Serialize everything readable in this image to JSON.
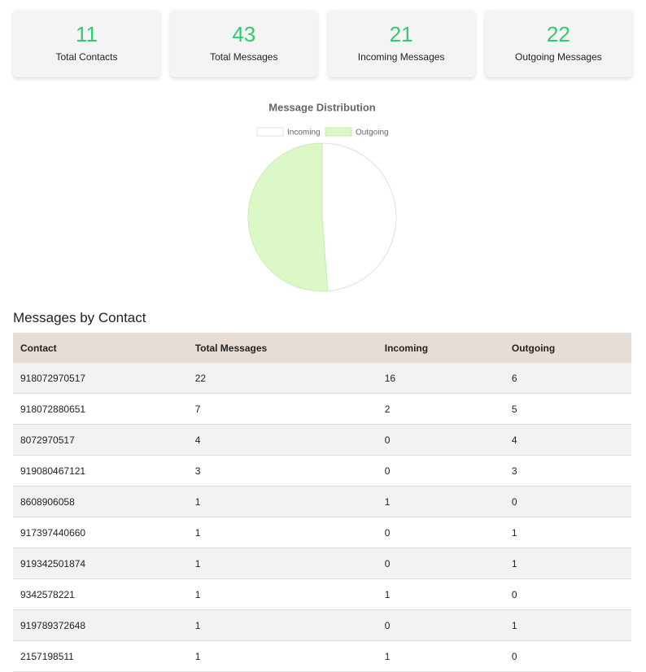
{
  "stats": [
    {
      "value": 11,
      "label": "Total Contacts"
    },
    {
      "value": 43,
      "label": "Total Messages"
    },
    {
      "value": 21,
      "label": "Incoming Messages"
    },
    {
      "value": 22,
      "label": "Outgoing Messages"
    }
  ],
  "chart_data": {
    "type": "pie",
    "title": "Message Distribution",
    "categories": [
      "Incoming",
      "Outgoing"
    ],
    "values": [
      21,
      22
    ],
    "colors": [
      "#ffffff",
      "#dcf8c6"
    ],
    "border_colors": [
      "#e0e0e0",
      "#c8ecb0"
    ],
    "legend": "top"
  },
  "table": {
    "title": "Messages by Contact",
    "header": [
      "Contact",
      "Total Messages",
      "Incoming",
      "Outgoing"
    ],
    "rows": [
      [
        "918072970517",
        22,
        16,
        6
      ],
      [
        "918072880651",
        7,
        2,
        5
      ],
      [
        "8072970517",
        4,
        0,
        4
      ],
      [
        "919080467121",
        3,
        0,
        3
      ],
      [
        "8608906058",
        1,
        1,
        0
      ],
      [
        "917397440660",
        1,
        0,
        1
      ],
      [
        "919342501874",
        1,
        0,
        1
      ],
      [
        "9342578221",
        1,
        1,
        0
      ],
      [
        "919789372648",
        1,
        0,
        1
      ],
      [
        "2157198511",
        1,
        1,
        0
      ]
    ]
  }
}
